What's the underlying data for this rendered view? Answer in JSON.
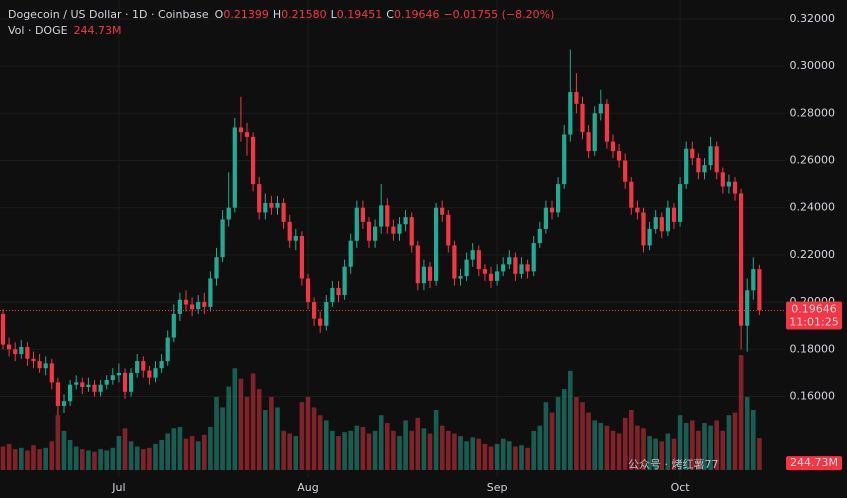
{
  "chart_data": {
    "type": "candlestick",
    "title": "Dogecoin / US Dollar · 1D · Coinbase",
    "legend": [
      {
        "key": "O",
        "value": "0.21399"
      },
      {
        "key": "H",
        "value": "0.21580"
      },
      {
        "key": "L",
        "value": "0.19451"
      },
      {
        "key": "C",
        "value": "0.19646"
      },
      {
        "key": null,
        "value": "−0.01755 (−8.20%)"
      }
    ],
    "categories": [
      null,
      null,
      null,
      null,
      null,
      null,
      null,
      null,
      null,
      null,
      null,
      null,
      null,
      null,
      null,
      null,
      null,
      null,
      null,
      "Jul",
      null,
      null,
      null,
      null,
      null,
      null,
      null,
      null,
      null,
      null,
      null,
      null,
      null,
      null,
      null,
      null,
      null,
      null,
      null,
      null,
      null,
      null,
      null,
      null,
      null,
      null,
      null,
      null,
      null,
      null,
      "Aug",
      null,
      null,
      null,
      null,
      null,
      null,
      null,
      null,
      null,
      null,
      null,
      null,
      null,
      null,
      null,
      null,
      null,
      null,
      null,
      null,
      null,
      null,
      null,
      null,
      null,
      null,
      null,
      null,
      null,
      null,
      "Sep",
      null,
      null,
      null,
      null,
      null,
      null,
      null,
      null,
      null,
      null,
      null,
      null,
      null,
      null,
      null,
      null,
      null,
      null,
      null,
      null,
      null,
      null,
      null,
      null,
      null,
      null,
      null,
      null,
      null,
      "Oct",
      null,
      null,
      null,
      null,
      null,
      null,
      null,
      null,
      null,
      null,
      null,
      null,
      null
    ],
    "open": [
      0.195,
      0.182,
      0.18,
      0.178,
      0.181,
      0.176,
      0.175,
      0.172,
      0.174,
      0.166,
      0.156,
      0.158,
      0.165,
      0.166,
      0.164,
      0.165,
      0.162,
      0.165,
      0.167,
      0.169,
      0.17,
      0.162,
      0.17,
      0.175,
      0.171,
      0.168,
      0.172,
      0.175,
      0.185,
      0.195,
      0.201,
      0.199,
      0.197,
      0.2,
      0.198,
      0.21,
      0.219,
      0.235,
      0.24,
      0.274,
      0.272,
      0.27,
      0.25,
      0.238,
      0.242,
      0.24,
      0.242,
      0.234,
      0.226,
      0.228,
      0.21,
      0.2,
      0.193,
      0.19,
      0.2,
      0.206,
      0.203,
      0.215,
      0.226,
      0.24,
      0.234,
      0.226,
      0.232,
      0.241,
      0.232,
      0.229,
      0.233,
      0.236,
      0.224,
      0.208,
      0.215,
      0.209,
      0.24,
      0.237,
      0.224,
      0.21,
      0.211,
      0.218,
      0.222,
      0.214,
      0.212,
      0.209,
      0.213,
      0.216,
      0.219,
      0.212,
      0.216,
      0.213,
      0.225,
      0.231,
      0.24,
      0.238,
      0.25,
      0.271,
      0.289,
      0.284,
      0.272,
      0.264,
      0.28,
      0.284,
      0.268,
      0.264,
      0.26,
      0.251,
      0.24,
      0.238,
      0.224,
      0.231,
      0.236,
      0.23,
      0.24,
      0.234,
      0.25,
      0.265,
      0.261,
      0.255,
      0.258,
      0.266,
      0.255,
      0.249,
      0.251,
      0.246,
      0.19,
      0.205,
      0.21399
    ],
    "high": [
      0.197,
      0.185,
      0.183,
      0.184,
      0.183,
      0.179,
      0.178,
      0.177,
      0.176,
      0.168,
      0.161,
      0.167,
      0.169,
      0.168,
      0.168,
      0.167,
      0.167,
      0.169,
      0.172,
      0.174,
      0.172,
      0.172,
      0.178,
      0.177,
      0.173,
      0.175,
      0.178,
      0.188,
      0.199,
      0.204,
      0.205,
      0.202,
      0.203,
      0.204,
      0.213,
      0.223,
      0.239,
      0.255,
      0.278,
      0.287,
      0.276,
      0.272,
      0.253,
      0.246,
      0.245,
      0.245,
      0.244,
      0.237,
      0.231,
      0.23,
      0.212,
      0.202,
      0.196,
      0.203,
      0.209,
      0.209,
      0.218,
      0.229,
      0.243,
      0.243,
      0.236,
      0.235,
      0.25,
      0.244,
      0.235,
      0.236,
      0.239,
      0.238,
      0.226,
      0.218,
      0.217,
      0.242,
      0.243,
      0.239,
      0.226,
      0.214,
      0.221,
      0.225,
      0.224,
      0.216,
      0.215,
      0.216,
      0.219,
      0.222,
      0.221,
      0.219,
      0.218,
      0.228,
      0.234,
      0.243,
      0.243,
      0.253,
      0.275,
      0.307,
      0.297,
      0.287,
      0.275,
      0.283,
      0.29,
      0.286,
      0.271,
      0.267,
      0.263,
      0.253,
      0.243,
      0.24,
      0.234,
      0.239,
      0.238,
      0.243,
      0.242,
      0.253,
      0.268,
      0.268,
      0.263,
      0.261,
      0.27,
      0.268,
      0.257,
      0.254,
      0.253,
      0.248,
      0.21,
      0.219,
      0.2158
    ],
    "low": [
      0.18,
      0.177,
      0.175,
      0.176,
      0.173,
      0.172,
      0.17,
      0.169,
      0.163,
      0.152,
      0.153,
      0.156,
      0.163,
      0.161,
      0.162,
      0.16,
      0.16,
      0.163,
      0.165,
      0.166,
      0.159,
      0.16,
      0.168,
      0.168,
      0.165,
      0.166,
      0.17,
      0.173,
      0.183,
      0.192,
      0.196,
      0.194,
      0.195,
      0.195,
      0.196,
      0.207,
      0.217,
      0.232,
      0.238,
      0.268,
      0.262,
      0.247,
      0.235,
      0.235,
      0.237,
      0.237,
      0.231,
      0.223,
      0.222,
      0.207,
      0.197,
      0.19,
      0.187,
      0.188,
      0.198,
      0.2,
      0.201,
      0.212,
      0.223,
      0.231,
      0.223,
      0.223,
      0.229,
      0.229,
      0.226,
      0.226,
      0.23,
      0.221,
      0.205,
      0.205,
      0.206,
      0.207,
      0.234,
      0.221,
      0.207,
      0.207,
      0.209,
      0.215,
      0.211,
      0.209,
      0.206,
      0.207,
      0.211,
      0.214,
      0.209,
      0.21,
      0.21,
      0.211,
      0.223,
      0.229,
      0.235,
      0.236,
      0.248,
      0.268,
      0.28,
      0.269,
      0.261,
      0.262,
      0.277,
      0.265,
      0.261,
      0.257,
      0.248,
      0.237,
      0.235,
      0.221,
      0.222,
      0.229,
      0.227,
      0.228,
      0.231,
      0.232,
      0.248,
      0.258,
      0.252,
      0.252,
      0.256,
      0.252,
      0.246,
      0.246,
      0.243,
      0.18,
      0.179,
      0.201,
      0.19451
    ],
    "close": [
      0.182,
      0.18,
      0.178,
      0.181,
      0.176,
      0.175,
      0.172,
      0.174,
      0.166,
      0.156,
      0.158,
      0.165,
      0.166,
      0.164,
      0.165,
      0.162,
      0.165,
      0.167,
      0.169,
      0.17,
      0.162,
      0.17,
      0.175,
      0.171,
      0.168,
      0.172,
      0.175,
      0.185,
      0.195,
      0.201,
      0.199,
      0.197,
      0.2,
      0.198,
      0.21,
      0.219,
      0.235,
      0.24,
      0.274,
      0.272,
      0.27,
      0.25,
      0.238,
      0.242,
      0.24,
      0.242,
      0.234,
      0.226,
      0.228,
      0.21,
      0.2,
      0.193,
      0.19,
      0.2,
      0.206,
      0.203,
      0.215,
      0.226,
      0.24,
      0.234,
      0.226,
      0.232,
      0.241,
      0.232,
      0.229,
      0.233,
      0.236,
      0.224,
      0.208,
      0.215,
      0.209,
      0.24,
      0.237,
      0.224,
      0.21,
      0.211,
      0.218,
      0.222,
      0.214,
      0.212,
      0.209,
      0.213,
      0.216,
      0.219,
      0.212,
      0.216,
      0.213,
      0.225,
      0.231,
      0.24,
      0.238,
      0.25,
      0.271,
      0.289,
      0.284,
      0.272,
      0.264,
      0.28,
      0.284,
      0.268,
      0.264,
      0.26,
      0.251,
      0.24,
      0.238,
      0.224,
      0.231,
      0.236,
      0.23,
      0.24,
      0.234,
      0.25,
      0.265,
      0.261,
      0.255,
      0.258,
      0.266,
      0.255,
      0.249,
      0.251,
      0.246,
      0.19,
      0.205,
      0.21399,
      0.19646
    ],
    "volume": {
      "name": "Vol · DOGE",
      "last_label": "244.73M",
      "values": [
        180,
        200,
        160,
        170,
        150,
        190,
        160,
        170,
        220,
        420,
        300,
        230,
        180,
        160,
        150,
        140,
        160,
        150,
        170,
        260,
        320,
        220,
        180,
        160,
        170,
        200,
        230,
        280,
        320,
        330,
        240,
        260,
        220,
        270,
        330,
        560,
        480,
        640,
        780,
        700,
        560,
        740,
        620,
        460,
        560,
        480,
        300,
        280,
        260,
        520,
        560,
        480,
        420,
        380,
        300,
        260,
        290,
        300,
        340,
        330,
        280,
        300,
        420,
        360,
        300,
        260,
        380,
        300,
        400,
        320,
        280,
        460,
        340,
        300,
        280,
        260,
        220,
        250,
        240,
        200,
        180,
        200,
        240,
        220,
        180,
        190,
        170,
        300,
        340,
        520,
        440,
        560,
        620,
        760,
        560,
        520,
        440,
        380,
        360,
        340,
        300,
        280,
        400,
        460,
        340,
        320,
        260,
        240,
        220,
        280,
        240,
        420,
        360,
        380,
        300,
        360,
        340,
        380,
        300,
        420,
        440,
        880,
        560,
        460,
        244.73
      ]
    },
    "up_color": "#22ab94",
    "down_color": "#f23645",
    "ylim": [
      0.117,
      0.328
    ],
    "yticks": [
      {
        "value": 0.32,
        "label": "0.32000"
      },
      {
        "value": 0.3,
        "label": "0.30000"
      },
      {
        "value": 0.28,
        "label": "0.28000"
      },
      {
        "value": 0.26,
        "label": "0.26000"
      },
      {
        "value": 0.24,
        "label": "0.24000"
      },
      {
        "value": 0.22,
        "label": "0.22000"
      },
      {
        "value": 0.2,
        "label": "0.20000"
      },
      {
        "value": 0.18,
        "label": "0.18000"
      },
      {
        "value": 0.16,
        "label": "0.16000"
      }
    ],
    "vlim": [
      0,
      1150
    ],
    "grid": true,
    "last_price": {
      "label": "0.19646",
      "countdown": "11:01:25"
    },
    "watermark": "公众号 · 烤红薯77"
  }
}
